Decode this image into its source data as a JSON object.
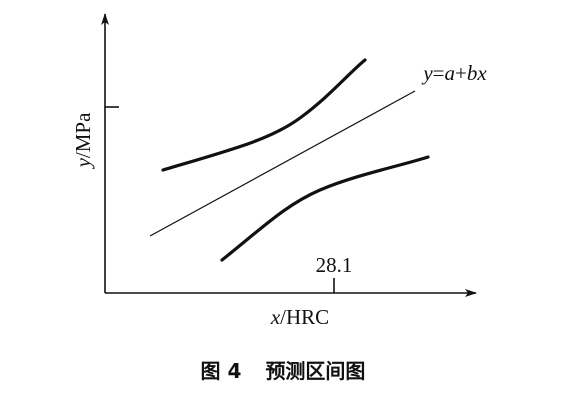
{
  "figure": {
    "y_label": {
      "var": "y",
      "unit": "/MPa"
    },
    "x_label": {
      "var": "x",
      "unit": "/HRC"
    },
    "line_label": {
      "lhs": "y",
      "eq": "=",
      "a": "a",
      "plus": "+",
      "bx": "bx"
    },
    "x_marker": "28.1",
    "caption": {
      "number": "图 4",
      "title": "预测区间图"
    }
  }
}
